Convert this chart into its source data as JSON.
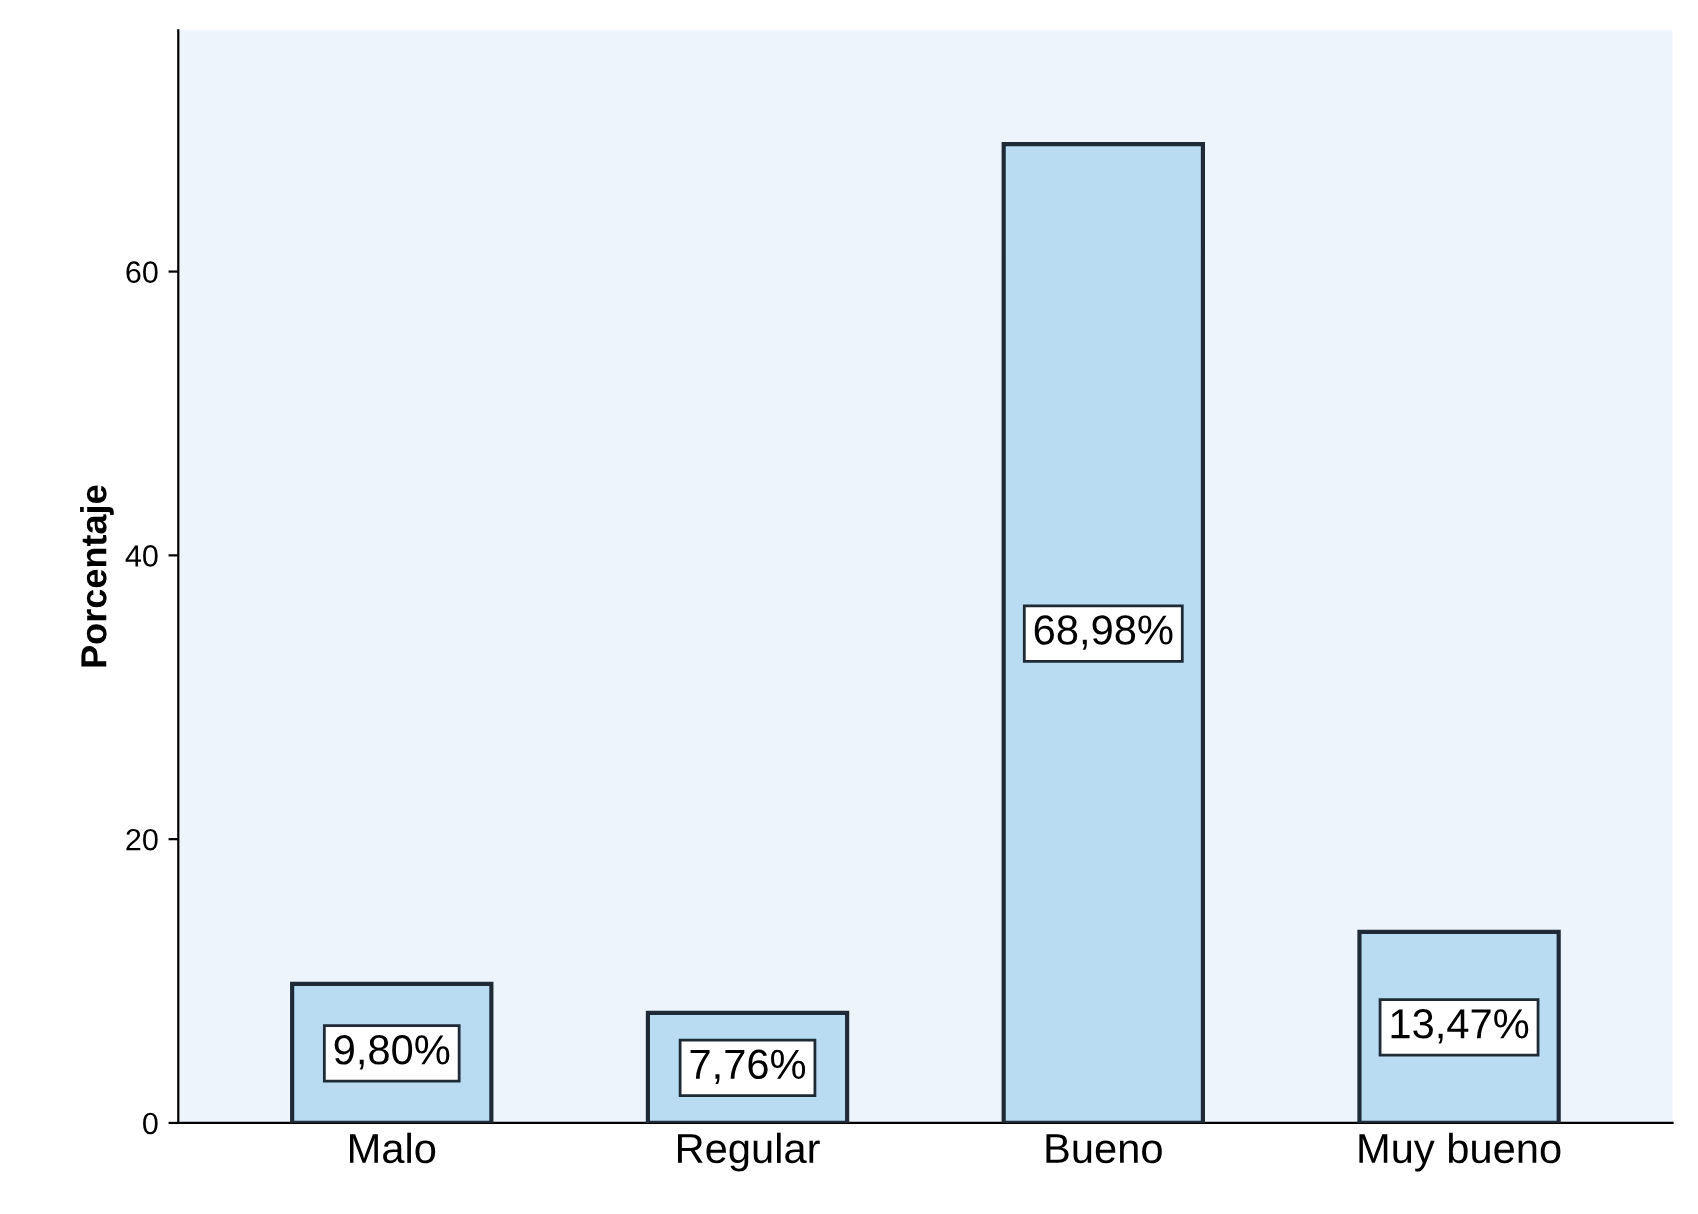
{
  "chart_data": {
    "type": "bar",
    "ylabel": "Porcentaje",
    "categories": [
      "Malo",
      "Regular",
      "Bueno",
      "Muy bueno"
    ],
    "values": [
      9.8,
      7.76,
      68.98,
      13.47
    ],
    "value_labels": [
      "9,80%",
      "7,76%",
      "68,98%",
      "13,47%"
    ],
    "color": "#b9dcf3",
    "ylim": [
      0,
      77
    ],
    "yticks": [
      0,
      20,
      40,
      60
    ],
    "grid": false,
    "legend": false
  }
}
